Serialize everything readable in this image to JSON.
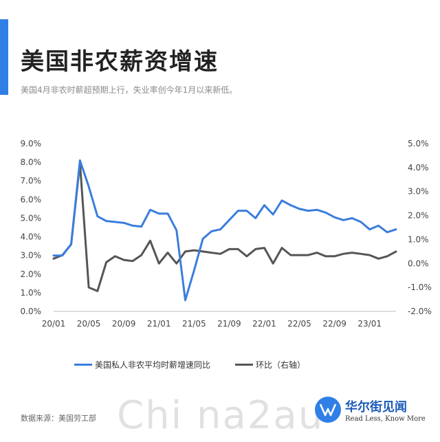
{
  "header": {
    "title": "美国非农薪资增速",
    "subtitle": "美国4月非农时薪超预期上行，失业率创今年1月以来新低。"
  },
  "footer": {
    "source": "数据来源：美国劳工部",
    "watermark": "Chi na2au",
    "logo_cn": "华尔街见闻",
    "logo_en": "Read Less, Know More"
  },
  "colors": {
    "accent": "#2f7fe6",
    "series_yoy": "#3b7ddd",
    "series_mom": "#555555"
  },
  "chart_data": {
    "type": "line",
    "x_tick_labels": [
      "20/01",
      "20/05",
      "20/09",
      "21/01",
      "21/05",
      "21/09",
      "22/01",
      "22/05",
      "22/09",
      "23/01"
    ],
    "x_tick_indices": [
      0,
      4,
      8,
      12,
      16,
      20,
      24,
      28,
      32,
      36
    ],
    "x_count": 40,
    "y_left": {
      "ylim": [
        0,
        9
      ],
      "ticks": [
        "0.0%",
        "1.0%",
        "2.0%",
        "3.0%",
        "4.0%",
        "5.0%",
        "6.0%",
        "7.0%",
        "8.0%",
        "9.0%"
      ]
    },
    "y_right": {
      "ylim": [
        -2,
        5
      ],
      "ticks": [
        "-2.0%",
        "-1.0%",
        "0.0%",
        "1.0%",
        "2.0%",
        "3.0%",
        "4.0%",
        "5.0%"
      ]
    },
    "series": [
      {
        "name": "美国私人非农平均时薪增速同比",
        "axis": "left",
        "color": "#3b7ddd",
        "values": [
          3.0,
          3.0,
          3.6,
          8.1,
          6.7,
          5.1,
          4.85,
          4.8,
          4.75,
          4.6,
          4.55,
          5.45,
          5.25,
          5.25,
          4.35,
          0.6,
          2.2,
          3.9,
          4.3,
          4.4,
          4.9,
          5.4,
          5.4,
          5.0,
          5.7,
          5.2,
          5.95,
          5.7,
          5.5,
          5.4,
          5.45,
          5.3,
          5.05,
          4.9,
          5.0,
          4.8,
          4.4,
          4.6,
          4.25,
          4.4
        ]
      },
      {
        "name": "环比（右轴）",
        "axis": "right",
        "color": "#555555",
        "values": [
          0.2,
          0.35,
          0.8,
          4.2,
          -1.0,
          -1.15,
          0.05,
          0.3,
          0.15,
          0.1,
          0.35,
          0.95,
          0.0,
          0.45,
          0.0,
          0.5,
          0.55,
          0.5,
          0.45,
          0.4,
          0.6,
          0.6,
          0.3,
          0.6,
          0.65,
          0.0,
          0.65,
          0.35,
          0.35,
          0.35,
          0.45,
          0.3,
          0.3,
          0.4,
          0.45,
          0.4,
          0.35,
          0.2,
          0.3,
          0.5
        ]
      }
    ]
  }
}
